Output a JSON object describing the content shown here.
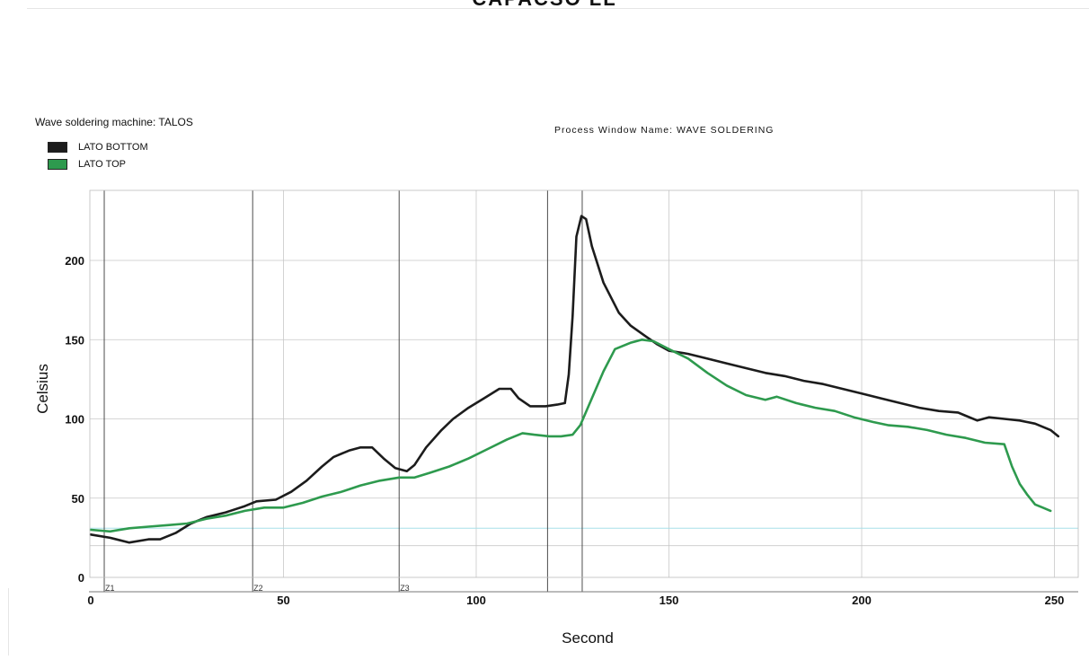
{
  "page": {
    "title": "CAPACSO LL",
    "machine_label": "Wave soldering machine: TALOS",
    "process_window": "Process Window Name:  WAVE SOLDERING"
  },
  "legend": {
    "items": [
      {
        "label": "LATO BOTTOM",
        "color": "#1c1c1c"
      },
      {
        "label": "LATO TOP",
        "color": "#2e9a4e"
      }
    ]
  },
  "chart_data": {
    "type": "line",
    "xlabel": "Second",
    "ylabel": "Celsius",
    "xlim": [
      0,
      253
    ],
    "ylim": [
      0,
      240
    ],
    "xticks": [
      0,
      50,
      100,
      150,
      200,
      250
    ],
    "yticks": [
      0,
      50,
      100,
      150,
      200
    ],
    "extra_hlines": [
      20
    ],
    "grid": true,
    "reference_line": {
      "y": 31,
      "color": "#a8e0e8"
    },
    "zone_lines": [
      {
        "x": 3.5,
        "label": "Z1"
      },
      {
        "x": 42,
        "label": "Z2"
      },
      {
        "x": 80,
        "label": "Z3"
      },
      {
        "x": 118.5,
        "label": ""
      },
      {
        "x": 127.5,
        "label": ""
      }
    ],
    "series": [
      {
        "name": "LATO BOTTOM",
        "color": "#1c1c1c",
        "points": [
          [
            0,
            27
          ],
          [
            5,
            25
          ],
          [
            10,
            22
          ],
          [
            15,
            24
          ],
          [
            18,
            24
          ],
          [
            22,
            28
          ],
          [
            26,
            34
          ],
          [
            30,
            38
          ],
          [
            35,
            41
          ],
          [
            40,
            45
          ],
          [
            43,
            48
          ],
          [
            48,
            49
          ],
          [
            52,
            54
          ],
          [
            56,
            61
          ],
          [
            60,
            70
          ],
          [
            63,
            76
          ],
          [
            67,
            80
          ],
          [
            70,
            82
          ],
          [
            73,
            82
          ],
          [
            76,
            75
          ],
          [
            79,
            69
          ],
          [
            82,
            67
          ],
          [
            84,
            71
          ],
          [
            87,
            82
          ],
          [
            91,
            93
          ],
          [
            94,
            100
          ],
          [
            98,
            107
          ],
          [
            102,
            113
          ],
          [
            106,
            119
          ],
          [
            109,
            119
          ],
          [
            111,
            113
          ],
          [
            114,
            108
          ],
          [
            118,
            108
          ],
          [
            121,
            109
          ],
          [
            123,
            110
          ],
          [
            124,
            128
          ],
          [
            125,
            165
          ],
          [
            126,
            215
          ],
          [
            127.3,
            228
          ],
          [
            128.5,
            226
          ],
          [
            130,
            209
          ],
          [
            133,
            186
          ],
          [
            137,
            167
          ],
          [
            140,
            159
          ],
          [
            144,
            152
          ],
          [
            147,
            147
          ],
          [
            150,
            143
          ],
          [
            155,
            141
          ],
          [
            160,
            138
          ],
          [
            165,
            135
          ],
          [
            170,
            132
          ],
          [
            175,
            129
          ],
          [
            180,
            127
          ],
          [
            185,
            124
          ],
          [
            190,
            122
          ],
          [
            195,
            119
          ],
          [
            200,
            116
          ],
          [
            205,
            113
          ],
          [
            210,
            110
          ],
          [
            215,
            107
          ],
          [
            220,
            105
          ],
          [
            225,
            104
          ],
          [
            227,
            102
          ],
          [
            230,
            99
          ],
          [
            233,
            101
          ],
          [
            237,
            100
          ],
          [
            241,
            99
          ],
          [
            245,
            97
          ],
          [
            249,
            93
          ],
          [
            251,
            89
          ]
        ]
      },
      {
        "name": "LATO TOP",
        "color": "#2e9a4e",
        "points": [
          [
            0,
            30
          ],
          [
            5,
            29
          ],
          [
            10,
            31
          ],
          [
            15,
            32
          ],
          [
            20,
            33
          ],
          [
            25,
            34
          ],
          [
            30,
            37
          ],
          [
            35,
            39
          ],
          [
            40,
            42
          ],
          [
            45,
            44
          ],
          [
            50,
            44
          ],
          [
            55,
            47
          ],
          [
            60,
            51
          ],
          [
            65,
            54
          ],
          [
            70,
            58
          ],
          [
            75,
            61
          ],
          [
            80,
            63
          ],
          [
            84,
            63
          ],
          [
            88,
            66
          ],
          [
            93,
            70
          ],
          [
            98,
            75
          ],
          [
            103,
            81
          ],
          [
            108,
            87
          ],
          [
            112,
            91
          ],
          [
            115,
            90
          ],
          [
            119,
            89
          ],
          [
            122,
            89
          ],
          [
            125,
            90
          ],
          [
            127,
            96
          ],
          [
            130,
            113
          ],
          [
            133,
            130
          ],
          [
            136,
            144
          ],
          [
            140,
            148
          ],
          [
            143,
            150
          ],
          [
            146,
            149
          ],
          [
            150,
            144
          ],
          [
            155,
            138
          ],
          [
            160,
            129
          ],
          [
            165,
            121
          ],
          [
            170,
            115
          ],
          [
            175,
            112
          ],
          [
            178,
            114
          ],
          [
            183,
            110
          ],
          [
            188,
            107
          ],
          [
            193,
            105
          ],
          [
            198,
            101
          ],
          [
            203,
            98
          ],
          [
            207,
            96
          ],
          [
            212,
            95
          ],
          [
            217,
            93
          ],
          [
            222,
            90
          ],
          [
            227,
            88
          ],
          [
            232,
            85
          ],
          [
            237,
            84
          ],
          [
            239,
            70
          ],
          [
            241,
            59
          ],
          [
            243,
            52
          ],
          [
            245,
            46
          ],
          [
            247,
            44
          ],
          [
            249,
            42
          ]
        ]
      }
    ]
  }
}
